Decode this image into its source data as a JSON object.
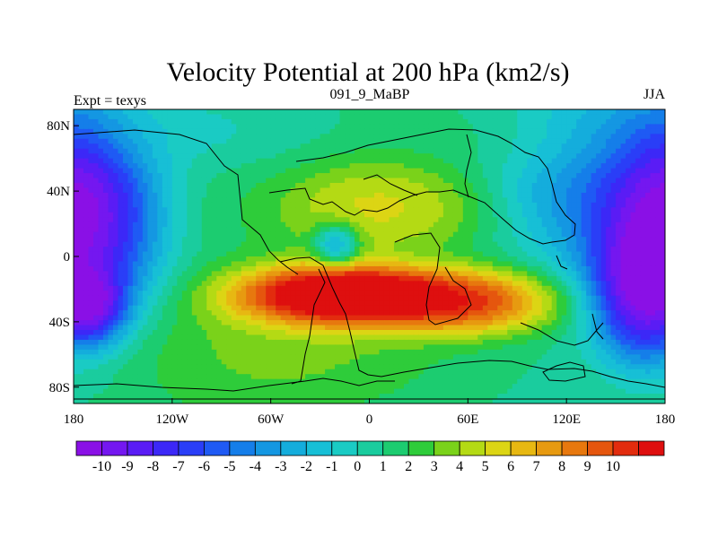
{
  "chart_data": {
    "type": "heatmap",
    "title": "Velocity Potential at 200 hPa (km2/s)",
    "subtitle_left": "Expt = texys",
    "subtitle_center": "091_9_MaBP",
    "subtitle_right": "JJA",
    "x_ticks": [
      "180",
      "120W",
      "60W",
      "0",
      "60E",
      "120E",
      "180"
    ],
    "x_tick_values": [
      -180,
      -120,
      -60,
      0,
      60,
      120,
      180
    ],
    "y_ticks": [
      "80N",
      "40N",
      "0",
      "40S",
      "80S"
    ],
    "y_tick_values": [
      80,
      40,
      0,
      -40,
      -80
    ],
    "xlim": [
      -180,
      180
    ],
    "ylim": [
      -90,
      90
    ],
    "colorbar_labels": [
      "-10",
      "-9",
      "-8",
      "-7",
      "-6",
      "-5",
      "-4",
      "-3",
      "-2",
      "-1",
      "0",
      "1",
      "2",
      "3",
      "4",
      "5",
      "6",
      "7",
      "8",
      "9",
      "10"
    ],
    "colorbar_values": [
      -10,
      -9,
      -8,
      -7,
      -6,
      -5,
      -4,
      -3,
      -2,
      -1,
      0,
      1,
      2,
      3,
      4,
      5,
      6,
      7,
      8,
      9,
      10
    ],
    "field_centers": [
      {
        "lon": 180,
        "lat": 25,
        "value": -10,
        "sx": 30,
        "sy": 40
      },
      {
        "lon": -180,
        "lat": 25,
        "value": -10,
        "sx": 30,
        "sy": 40
      },
      {
        "lon": -172,
        "lat": -30,
        "value": -9,
        "sx": 14,
        "sy": 14
      },
      {
        "lon": 168,
        "lat": -20,
        "value": -8,
        "sx": 18,
        "sy": 25
      },
      {
        "lon": 126,
        "lat": 52,
        "value": -3,
        "sx": 30,
        "sy": 30
      },
      {
        "lon": -105,
        "lat": 78,
        "value": -1,
        "sx": 45,
        "sy": 15
      },
      {
        "lon": -20,
        "lat": 8,
        "value": -4,
        "sx": 8,
        "sy": 8
      },
      {
        "lon": -15,
        "lat": -25,
        "value": 13,
        "sx": 40,
        "sy": 12
      },
      {
        "lon": 58,
        "lat": -28,
        "value": 8,
        "sx": 34,
        "sy": 12
      },
      {
        "lon": 10,
        "lat": 30,
        "value": 4,
        "sx": 38,
        "sy": 18
      },
      {
        "lon": -40,
        "lat": -60,
        "value": 2,
        "sx": 60,
        "sy": 20
      },
      {
        "lon": 90,
        "lat": 70,
        "value": 1,
        "sx": 40,
        "sy": 15
      }
    ],
    "field_falloff_deg": 42
  }
}
